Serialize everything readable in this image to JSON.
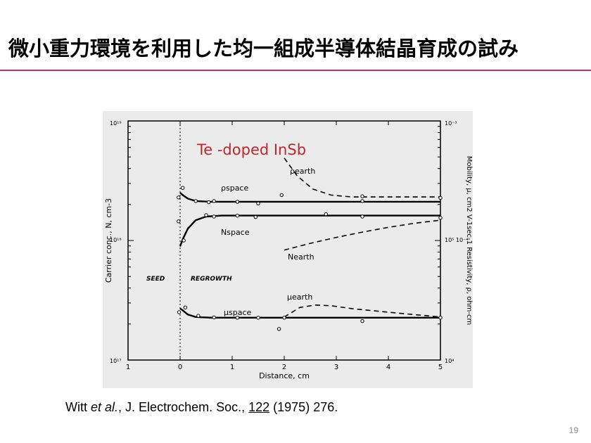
{
  "slide": {
    "title": "微小重力環境を利用した均一組成半導体結晶育成の試み",
    "page_number": "19",
    "accent_color": "#cc2a7a"
  },
  "citation": {
    "authors": "Witt",
    "etal": "et al.",
    "journal": ", J. Electrochem. Soc., ",
    "volume": "122",
    "rest": " (1975)  276."
  },
  "chart_data": {
    "type": "line",
    "title": "Te -doped InSb",
    "title_color": "#c0272d",
    "xlabel": "Distance, cm",
    "ylabel_left": "Carrier conc., N, cm-3",
    "ylabel_right": "Mobility, μ, cm2 V-1sec-1   Resistivity, ρ, ohm-cm",
    "xlim": [
      -1,
      5
    ],
    "x_ticks": [
      "1",
      "0",
      "1",
      "2",
      "3",
      "4",
      "5"
    ],
    "y_left_scale": "log",
    "y_left_ticks": [
      "10¹⁹",
      "10¹⁸",
      "10¹⁷"
    ],
    "y_right_ticks": [
      "10⁻³",
      "10⁵  10⁻⁴",
      "10⁴"
    ],
    "regions": [
      "SEED",
      "REGROWTH"
    ],
    "background": "#ebebeb",
    "series": [
      {
        "name": "ρspace",
        "style": "solid",
        "x": [
          0.0,
          0.05,
          0.15,
          0.3,
          0.6,
          1,
          2,
          3,
          4,
          5
        ],
        "y_frac": [
          0.7,
          0.69,
          0.675,
          0.665,
          0.662,
          0.662,
          0.662,
          0.662,
          0.662,
          0.662
        ]
      },
      {
        "name": "ρearth",
        "style": "dashed",
        "x": [
          2.0,
          2.25,
          2.55,
          2.9,
          3.3,
          4.0,
          5.0
        ],
        "y_frac": [
          0.845,
          0.77,
          0.715,
          0.69,
          0.682,
          0.682,
          0.682
        ]
      },
      {
        "name": "Nspace",
        "style": "solid",
        "x": [
          0.0,
          0.05,
          0.15,
          0.3,
          0.5,
          0.8,
          1.2,
          2,
          3,
          4,
          5
        ],
        "y_frac": [
          0.475,
          0.505,
          0.55,
          0.585,
          0.6,
          0.604,
          0.604,
          0.604,
          0.604,
          0.604,
          0.604
        ]
      },
      {
        "name": "Nearth",
        "style": "dashed",
        "x": [
          2.0,
          2.5,
          3.0,
          3.5,
          4.0,
          4.5,
          5.0
        ],
        "y_frac": [
          0.46,
          0.488,
          0.513,
          0.535,
          0.555,
          0.572,
          0.585
        ]
      },
      {
        "name": "μspace",
        "style": "solid",
        "x": [
          0.0,
          0.05,
          0.15,
          0.3,
          0.6,
          1,
          2,
          3,
          4,
          5
        ],
        "y_frac": [
          0.215,
          0.208,
          0.19,
          0.18,
          0.177,
          0.177,
          0.177,
          0.177,
          0.177,
          0.177
        ]
      },
      {
        "name": "μearth",
        "style": "dashed",
        "x": [
          2.0,
          2.3,
          2.6,
          2.9,
          3.3,
          4.0,
          4.6,
          5.0
        ],
        "y_frac": [
          0.18,
          0.22,
          0.23,
          0.227,
          0.215,
          0.2,
          0.188,
          0.18
        ]
      }
    ],
    "markers": [
      {
        "x": -0.03,
        "y_frac": 0.68
      },
      {
        "x": 0.05,
        "y_frac": 0.72
      },
      {
        "x": 0.3,
        "y_frac": 0.665
      },
      {
        "x": 0.55,
        "y_frac": 0.66
      },
      {
        "x": 0.65,
        "y_frac": 0.665
      },
      {
        "x": 1.1,
        "y_frac": 0.662
      },
      {
        "x": 1.5,
        "y_frac": 0.655
      },
      {
        "x": 1.95,
        "y_frac": 0.69
      },
      {
        "x": 3.5,
        "y_frac": 0.665
      },
      {
        "x": 5.0,
        "y_frac": 0.678
      },
      {
        "x": 3.5,
        "y_frac": 0.685
      },
      {
        "x": -0.03,
        "y_frac": 0.58
      },
      {
        "x": 0.07,
        "y_frac": 0.5
      },
      {
        "x": 0.5,
        "y_frac": 0.606
      },
      {
        "x": 0.65,
        "y_frac": 0.6
      },
      {
        "x": 1.1,
        "y_frac": 0.604
      },
      {
        "x": 1.45,
        "y_frac": 0.598
      },
      {
        "x": 2.8,
        "y_frac": 0.61
      },
      {
        "x": 3.5,
        "y_frac": 0.6
      },
      {
        "x": 5.0,
        "y_frac": 0.595
      },
      {
        "x": -0.02,
        "y_frac": 0.2
      },
      {
        "x": 0.1,
        "y_frac": 0.22
      },
      {
        "x": 0.35,
        "y_frac": 0.185
      },
      {
        "x": 0.65,
        "y_frac": 0.178
      },
      {
        "x": 1.1,
        "y_frac": 0.177
      },
      {
        "x": 1.5,
        "y_frac": 0.177
      },
      {
        "x": 2.0,
        "y_frac": 0.177
      },
      {
        "x": 3.5,
        "y_frac": 0.163
      },
      {
        "x": 5.0,
        "y_frac": 0.177
      },
      {
        "x": 1.9,
        "y_frac": 0.13
      }
    ]
  }
}
